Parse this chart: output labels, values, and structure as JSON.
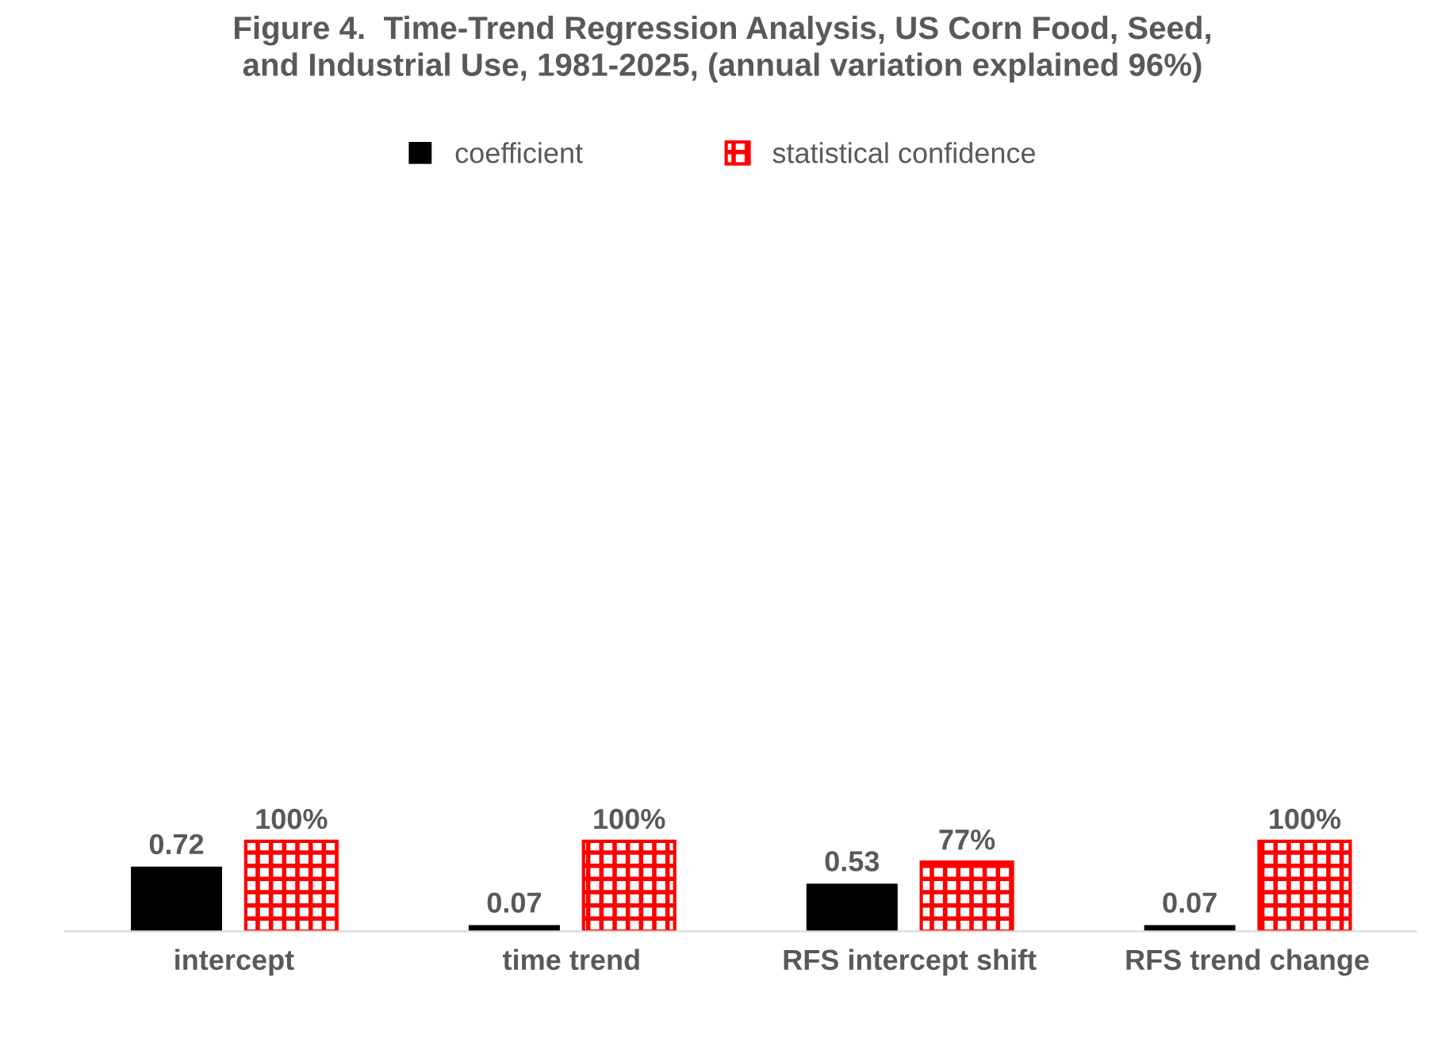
{
  "chart_data": {
    "type": "bar",
    "title": "Figure 4.  Time-Trend Regression Analysis, US Corn Food, Seed,\nand Industrial Use, 1981-2025, (annual variation explained 96%)",
    "categories": [
      "intercept",
      "time trend",
      "RFS intercept shift",
      "RFS trend change"
    ],
    "series": [
      {
        "name": "coefficient",
        "color": "#000000",
        "values": [
          0.72,
          0.07,
          0.53,
          0.07
        ],
        "value_labels": [
          "0.72",
          "0.07",
          "0.53",
          "0.07"
        ]
      },
      {
        "name": "statistical confidence",
        "color": "#ff0000",
        "values": [
          1.0,
          1.0,
          0.77,
          1.0
        ],
        "value_labels": [
          "100%",
          "100%",
          "77%",
          "100%"
        ]
      }
    ],
    "tick_labels": "x",
    "grid": false,
    "legend": "top"
  }
}
